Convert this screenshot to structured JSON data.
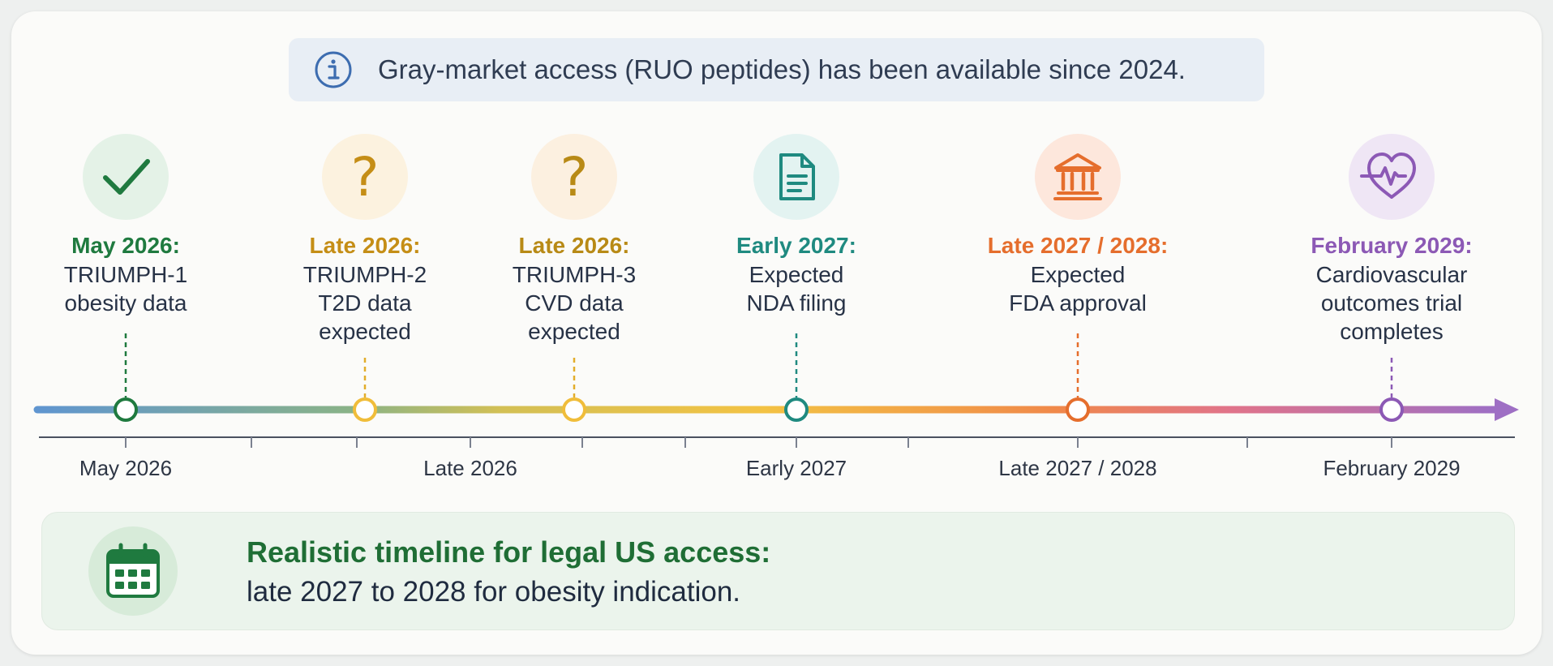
{
  "banner": {
    "text": "Gray-market access (RUO peptides) has been available since 2024.",
    "icon": "info-icon"
  },
  "milestones": [
    {
      "date": "May 2026:",
      "lines": [
        "TRIUMPH-1",
        "obesity data"
      ],
      "icon": "check-icon",
      "color": "#1f7a3f",
      "bg": "#e4f2e7"
    },
    {
      "date": "Late 2026:",
      "lines": [
        "TRIUMPH-2",
        "T2D data",
        "expected"
      ],
      "icon": "question-icon",
      "color": "#c58e16",
      "bg": "#fcf2df"
    },
    {
      "date": "Late 2026:",
      "lines": [
        "TRIUMPH-3",
        "CVD data",
        "expected"
      ],
      "icon": "question-icon",
      "color": "#b88a16",
      "bg": "#fcf0e0"
    },
    {
      "date": "Early 2027:",
      "lines": [
        "Expected",
        "NDA filing"
      ],
      "icon": "document-icon",
      "color": "#1f8a80",
      "bg": "#e3f3f1"
    },
    {
      "date": "Late 2027 / 2028:",
      "lines": [
        "Expected",
        "FDA approval"
      ],
      "icon": "bank-icon",
      "color": "#e56e2d",
      "bg": "#fde7dc"
    },
    {
      "date": "February 2029:",
      "lines": [
        "Cardiovascular",
        "outcomes trial",
        "completes"
      ],
      "icon": "heart-pulse-icon",
      "color": "#8c59b5",
      "bg": "#efe6f5"
    }
  ],
  "axis_labels": [
    "May 2026",
    "Late 2026",
    "Early 2027",
    "Late 2027 / 2028",
    "February 2029"
  ],
  "footer": {
    "title": "Realistic timeline for legal US access:",
    "text": "late 2027 to 2028 for obesity indication.",
    "icon": "calendar-icon"
  }
}
